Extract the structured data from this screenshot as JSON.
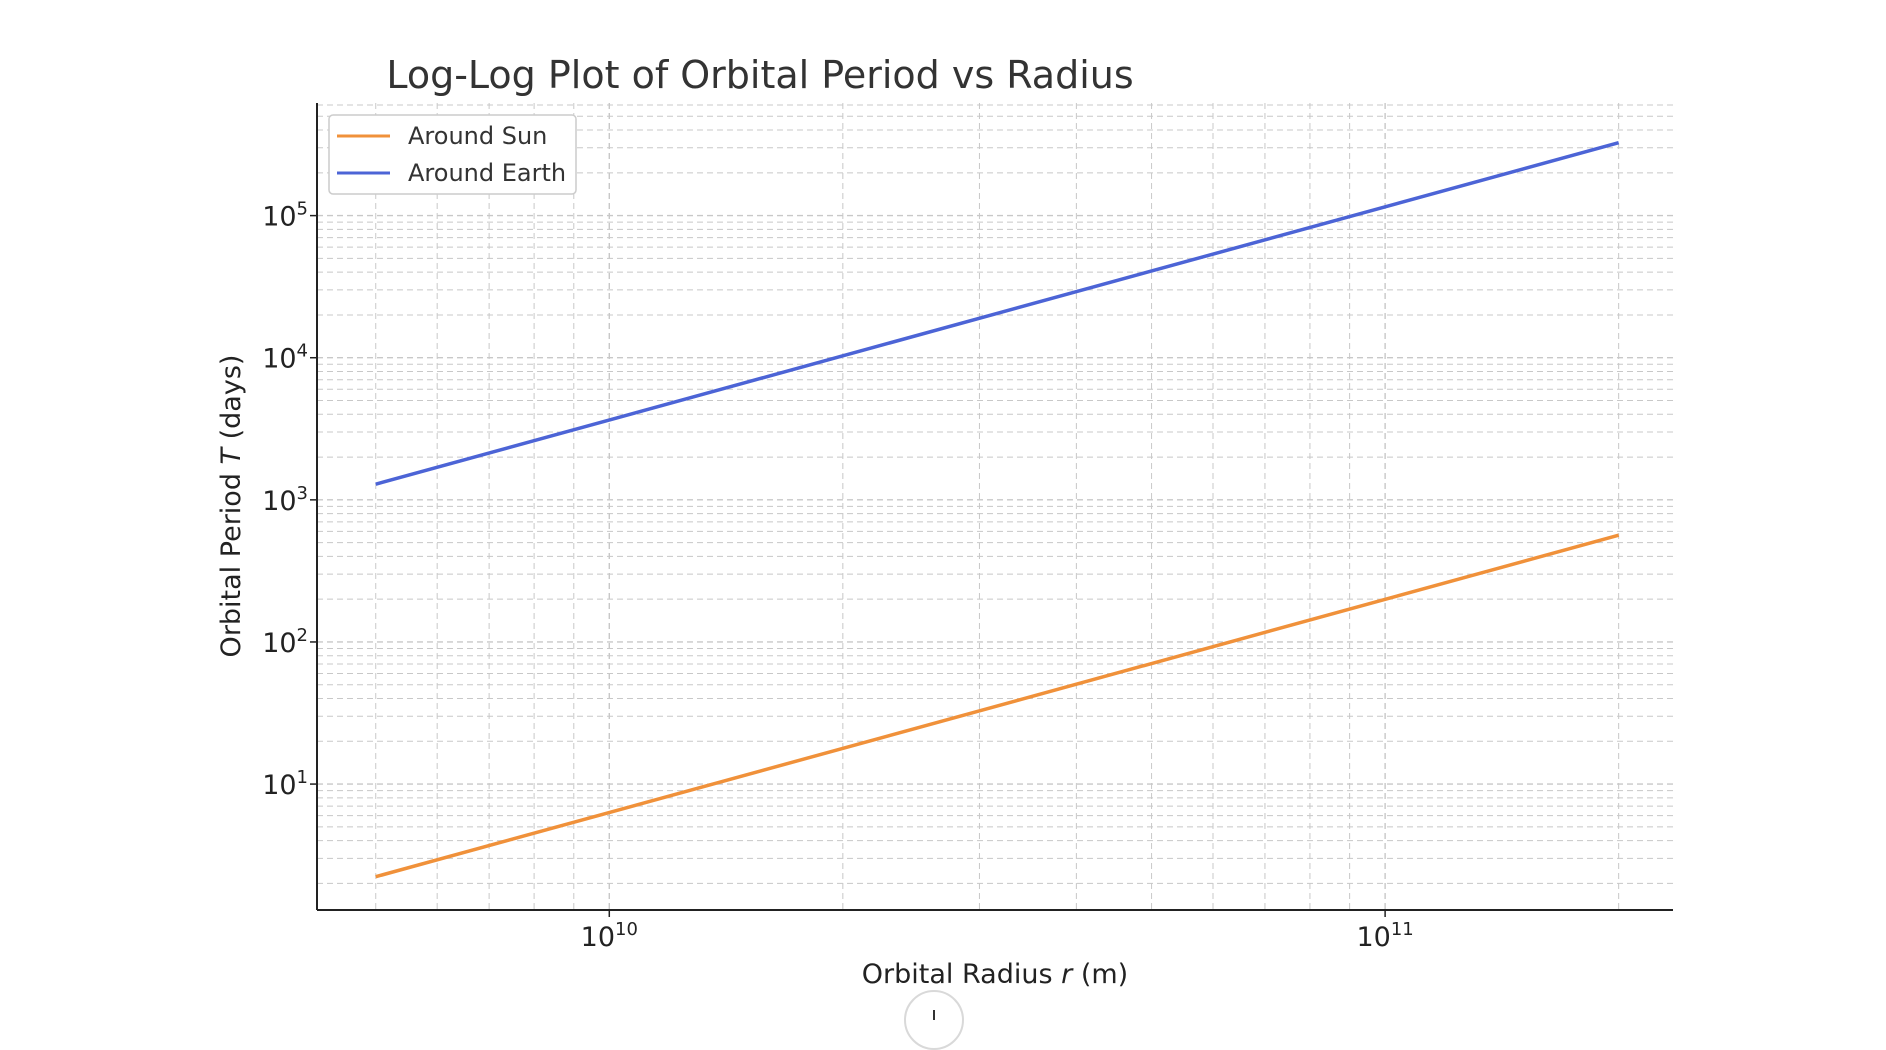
{
  "chart_data": {
    "type": "line",
    "title": "Log-Log Plot of Orbital Period vs Radius",
    "xlabel": {
      "prefix": "Orbital Radius ",
      "var": "r",
      "suffix": " (m)"
    },
    "ylabel": {
      "prefix": "Orbital Period ",
      "var": "T",
      "suffix": " (days)"
    },
    "xscale": "log",
    "yscale": "log",
    "xlim": [
      4200000000.0,
      235000000000.0
    ],
    "ylim": [
      1.3,
      620000
    ],
    "x": [
      5000000000.0,
      200000000000.0
    ],
    "x_ticks": [
      {
        "value": 10000000000.0,
        "base": "10",
        "exp": "10"
      },
      {
        "value": 100000000000.0,
        "base": "10",
        "exp": "11"
      }
    ],
    "y_ticks": [
      {
        "value": 10,
        "base": "10",
        "exp": "1"
      },
      {
        "value": 100,
        "base": "10",
        "exp": "2"
      },
      {
        "value": 1000,
        "base": "10",
        "exp": "3"
      },
      {
        "value": 10000,
        "base": "10",
        "exp": "4"
      },
      {
        "value": 100000,
        "base": "10",
        "exp": "5"
      }
    ],
    "series": [
      {
        "name": "Around Sun",
        "color": "#f0913a",
        "values": [
          2.23,
          564
        ]
      },
      {
        "name": "Around Earth",
        "color": "#4c64d6",
        "values": [
          1290,
          326000
        ]
      }
    ],
    "grid": true,
    "grid_style": "dashed, major and minor",
    "legend_position": "top-left"
  }
}
